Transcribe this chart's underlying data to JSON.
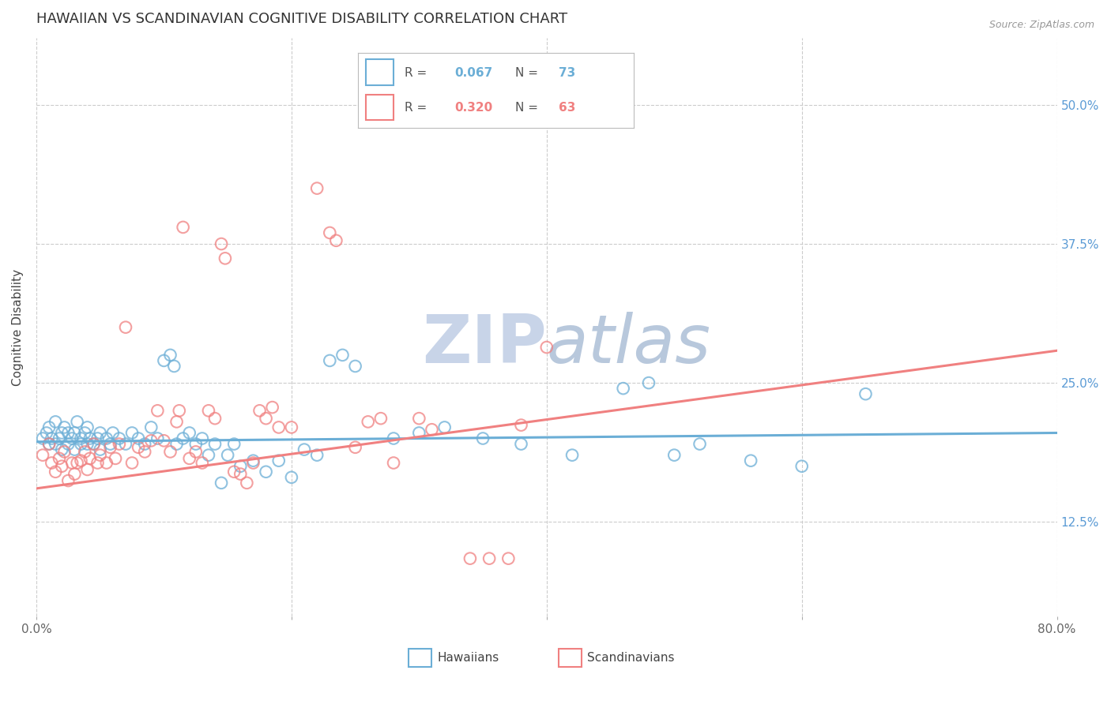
{
  "title": "HAWAIIAN VS SCANDINAVIAN COGNITIVE DISABILITY CORRELATION CHART",
  "source": "Source: ZipAtlas.com",
  "ylabel": "Cognitive Disability",
  "ytick_labels": [
    "12.5%",
    "25.0%",
    "37.5%",
    "50.0%"
  ],
  "ytick_values": [
    0.125,
    0.25,
    0.375,
    0.5
  ],
  "xlim": [
    0.0,
    0.8
  ],
  "ylim": [
    0.04,
    0.56
  ],
  "background_color": "#ffffff",
  "grid_color": "#cccccc",
  "hawaiian_color": "#6baed6",
  "scandinavian_color": "#f08080",
  "hawaiian_R": 0.067,
  "hawaiian_N": 73,
  "scandinavian_R": 0.32,
  "scandinavian_N": 63,
  "legend_label1": "Hawaiians",
  "legend_label2": "Scandinavians",
  "watermark_color": "#c8d4e8",
  "title_fontsize": 13,
  "axis_label_fontsize": 11,
  "tick_fontsize": 11,
  "source_fontsize": 9,
  "legend_fontsize": 11,
  "hawaiian_scatter": [
    [
      0.005,
      0.2
    ],
    [
      0.008,
      0.205
    ],
    [
      0.01,
      0.195
    ],
    [
      0.01,
      0.21
    ],
    [
      0.012,
      0.2
    ],
    [
      0.015,
      0.195
    ],
    [
      0.015,
      0.215
    ],
    [
      0.018,
      0.2
    ],
    [
      0.02,
      0.19
    ],
    [
      0.02,
      0.205
    ],
    [
      0.022,
      0.21
    ],
    [
      0.025,
      0.195
    ],
    [
      0.025,
      0.205
    ],
    [
      0.028,
      0.2
    ],
    [
      0.03,
      0.19
    ],
    [
      0.03,
      0.205
    ],
    [
      0.032,
      0.215
    ],
    [
      0.035,
      0.195
    ],
    [
      0.035,
      0.2
    ],
    [
      0.038,
      0.205
    ],
    [
      0.04,
      0.195
    ],
    [
      0.04,
      0.21
    ],
    [
      0.042,
      0.2
    ],
    [
      0.045,
      0.195
    ],
    [
      0.048,
      0.2
    ],
    [
      0.05,
      0.19
    ],
    [
      0.05,
      0.205
    ],
    [
      0.055,
      0.2
    ],
    [
      0.058,
      0.195
    ],
    [
      0.06,
      0.205
    ],
    [
      0.065,
      0.2
    ],
    [
      0.07,
      0.195
    ],
    [
      0.075,
      0.205
    ],
    [
      0.08,
      0.2
    ],
    [
      0.085,
      0.195
    ],
    [
      0.09,
      0.21
    ],
    [
      0.095,
      0.2
    ],
    [
      0.1,
      0.27
    ],
    [
      0.105,
      0.275
    ],
    [
      0.108,
      0.265
    ],
    [
      0.11,
      0.195
    ],
    [
      0.115,
      0.2
    ],
    [
      0.12,
      0.205
    ],
    [
      0.125,
      0.195
    ],
    [
      0.13,
      0.2
    ],
    [
      0.135,
      0.185
    ],
    [
      0.14,
      0.195
    ],
    [
      0.145,
      0.16
    ],
    [
      0.15,
      0.185
    ],
    [
      0.155,
      0.195
    ],
    [
      0.16,
      0.175
    ],
    [
      0.17,
      0.18
    ],
    [
      0.18,
      0.17
    ],
    [
      0.19,
      0.18
    ],
    [
      0.2,
      0.165
    ],
    [
      0.21,
      0.19
    ],
    [
      0.22,
      0.185
    ],
    [
      0.23,
      0.27
    ],
    [
      0.24,
      0.275
    ],
    [
      0.25,
      0.265
    ],
    [
      0.28,
      0.2
    ],
    [
      0.3,
      0.205
    ],
    [
      0.32,
      0.21
    ],
    [
      0.35,
      0.2
    ],
    [
      0.38,
      0.195
    ],
    [
      0.42,
      0.185
    ],
    [
      0.46,
      0.245
    ],
    [
      0.48,
      0.25
    ],
    [
      0.5,
      0.185
    ],
    [
      0.52,
      0.195
    ],
    [
      0.56,
      0.18
    ],
    [
      0.6,
      0.175
    ],
    [
      0.65,
      0.24
    ]
  ],
  "scandinavian_scatter": [
    [
      0.005,
      0.185
    ],
    [
      0.01,
      0.195
    ],
    [
      0.012,
      0.178
    ],
    [
      0.015,
      0.17
    ],
    [
      0.018,
      0.182
    ],
    [
      0.02,
      0.175
    ],
    [
      0.022,
      0.188
    ],
    [
      0.025,
      0.162
    ],
    [
      0.028,
      0.178
    ],
    [
      0.03,
      0.168
    ],
    [
      0.032,
      0.178
    ],
    [
      0.035,
      0.18
    ],
    [
      0.038,
      0.188
    ],
    [
      0.04,
      0.172
    ],
    [
      0.042,
      0.182
    ],
    [
      0.045,
      0.195
    ],
    [
      0.048,
      0.178
    ],
    [
      0.05,
      0.185
    ],
    [
      0.055,
      0.178
    ],
    [
      0.058,
      0.192
    ],
    [
      0.062,
      0.182
    ],
    [
      0.065,
      0.195
    ],
    [
      0.07,
      0.3
    ],
    [
      0.075,
      0.178
    ],
    [
      0.08,
      0.192
    ],
    [
      0.085,
      0.188
    ],
    [
      0.09,
      0.198
    ],
    [
      0.095,
      0.225
    ],
    [
      0.1,
      0.198
    ],
    [
      0.105,
      0.188
    ],
    [
      0.11,
      0.215
    ],
    [
      0.112,
      0.225
    ],
    [
      0.115,
      0.39
    ],
    [
      0.12,
      0.182
    ],
    [
      0.125,
      0.188
    ],
    [
      0.13,
      0.178
    ],
    [
      0.135,
      0.225
    ],
    [
      0.14,
      0.218
    ],
    [
      0.145,
      0.375
    ],
    [
      0.148,
      0.362
    ],
    [
      0.155,
      0.17
    ],
    [
      0.16,
      0.168
    ],
    [
      0.165,
      0.16
    ],
    [
      0.17,
      0.178
    ],
    [
      0.175,
      0.225
    ],
    [
      0.18,
      0.218
    ],
    [
      0.185,
      0.228
    ],
    [
      0.19,
      0.21
    ],
    [
      0.2,
      0.21
    ],
    [
      0.22,
      0.425
    ],
    [
      0.23,
      0.385
    ],
    [
      0.235,
      0.378
    ],
    [
      0.25,
      0.192
    ],
    [
      0.26,
      0.215
    ],
    [
      0.27,
      0.218
    ],
    [
      0.28,
      0.178
    ],
    [
      0.3,
      0.218
    ],
    [
      0.31,
      0.208
    ],
    [
      0.34,
      0.092
    ],
    [
      0.355,
      0.092
    ],
    [
      0.37,
      0.092
    ],
    [
      0.38,
      0.212
    ],
    [
      0.4,
      0.282
    ]
  ]
}
